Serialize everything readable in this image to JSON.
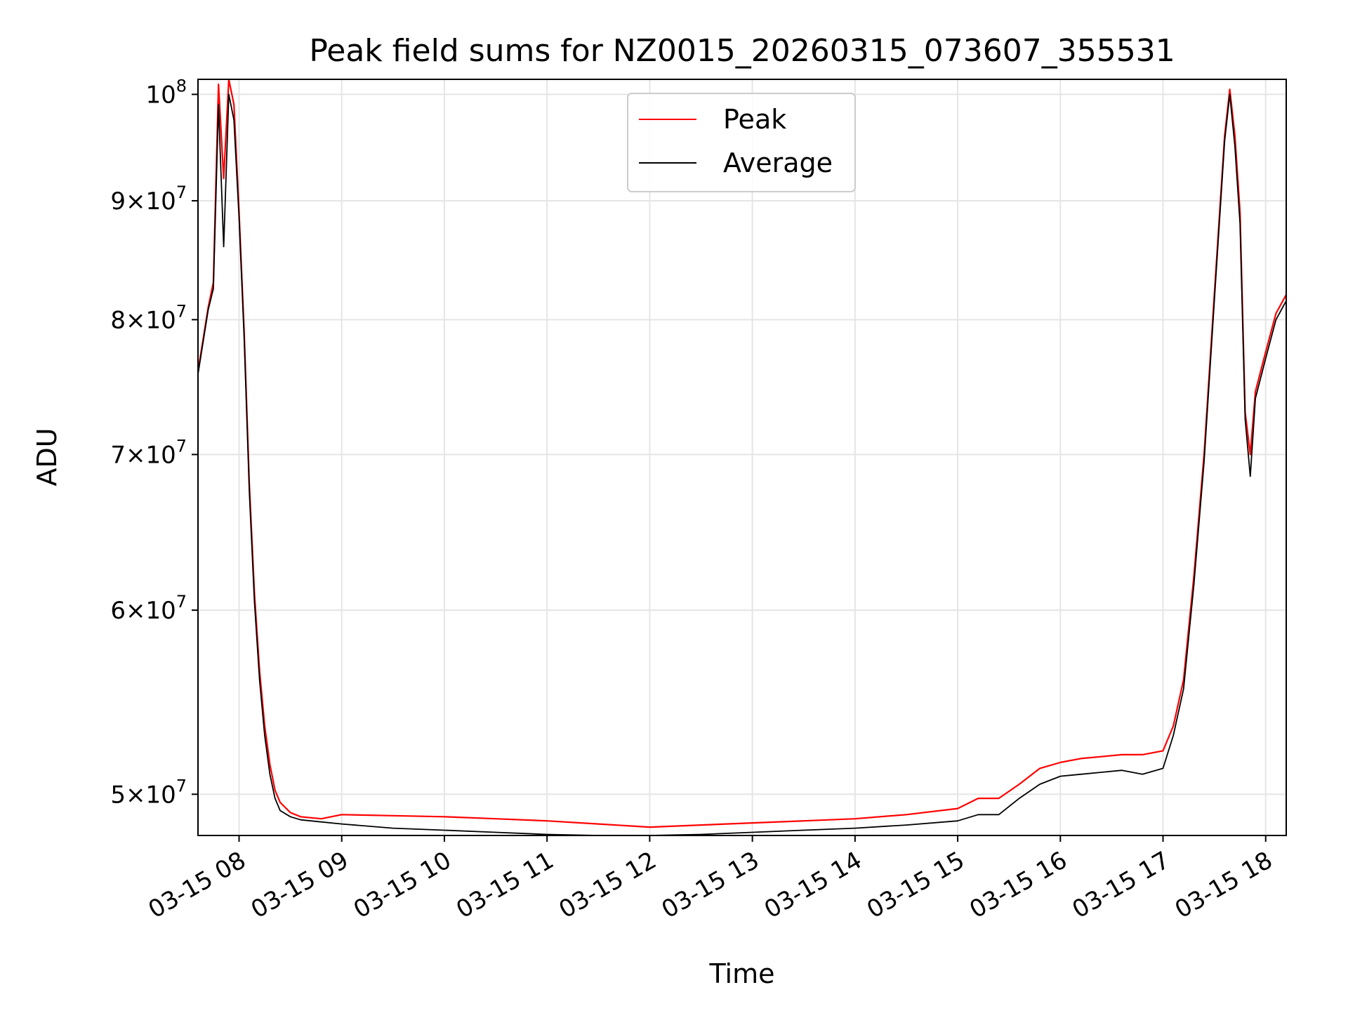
{
  "chart_data": {
    "type": "line",
    "title": "Peak field sums for NZ0015_20260315_073607_355531",
    "xlabel": "Time",
    "ylabel": "ADU",
    "yscale": "log",
    "xlim": [
      7.6,
      18.2
    ],
    "ylim": [
      48000000,
      101500000
    ],
    "grid": true,
    "legend_position": "top-center",
    "x_ticks": [
      {
        "v": 8,
        "label": "03-15 08"
      },
      {
        "v": 9,
        "label": "03-15 09"
      },
      {
        "v": 10,
        "label": "03-15 10"
      },
      {
        "v": 11,
        "label": "03-15 11"
      },
      {
        "v": 12,
        "label": "03-15 12"
      },
      {
        "v": 13,
        "label": "03-15 13"
      },
      {
        "v": 14,
        "label": "03-15 14"
      },
      {
        "v": 15,
        "label": "03-15 15"
      },
      {
        "v": 16,
        "label": "03-15 16"
      },
      {
        "v": 17,
        "label": "03-15 17"
      },
      {
        "v": 18,
        "label": "03-15 18"
      }
    ],
    "y_ticks": [
      {
        "v": 50000000,
        "mant": "5",
        "exp": "7"
      },
      {
        "v": 60000000,
        "mant": "6",
        "exp": "7"
      },
      {
        "v": 70000000,
        "mant": "7",
        "exp": "7"
      },
      {
        "v": 80000000,
        "mant": "8",
        "exp": "7"
      },
      {
        "v": 90000000,
        "mant": "9",
        "exp": "7"
      },
      {
        "v": 100000000,
        "mant": "",
        "exp": "8"
      }
    ],
    "x_unit_note": "hours of day on 03-15",
    "series": [
      {
        "name": "Peak",
        "color": "#ff0000",
        "x": [
          7.6,
          7.7,
          7.75,
          7.8,
          7.85,
          7.9,
          7.95,
          8.0,
          8.05,
          8.1,
          8.15,
          8.2,
          8.25,
          8.3,
          8.35,
          8.4,
          8.5,
          8.6,
          8.8,
          9.0,
          9.5,
          10.0,
          10.5,
          11.0,
          11.5,
          12.0,
          12.5,
          13.0,
          13.5,
          14.0,
          14.5,
          15.0,
          15.2,
          15.4,
          15.6,
          15.8,
          16.0,
          16.2,
          16.4,
          16.6,
          16.8,
          17.0,
          17.1,
          17.2,
          17.3,
          17.4,
          17.5,
          17.6,
          17.65,
          17.7,
          17.75,
          17.8,
          17.85,
          17.9,
          18.0,
          18.1,
          18.2
        ],
        "values": [
          76000000,
          81000000,
          83000000,
          101000000,
          92000000,
          101500000,
          99000000,
          89000000,
          79000000,
          68000000,
          61000000,
          56500000,
          53500000,
          51500000,
          50200000,
          49600000,
          49100000,
          48900000,
          48800000,
          49000000,
          48950000,
          48900000,
          48800000,
          48700000,
          48550000,
          48400000,
          48500000,
          48600000,
          48700000,
          48800000,
          49000000,
          49300000,
          49800000,
          49800000,
          50500000,
          51300000,
          51600000,
          51800000,
          51900000,
          52000000,
          52000000,
          52200000,
          53500000,
          56000000,
          62000000,
          70000000,
          82000000,
          96000000,
          100500000,
          96000000,
          89000000,
          73000000,
          70000000,
          74500000,
          77500000,
          80500000,
          82000000
        ]
      },
      {
        "name": "Average",
        "color": "#000000",
        "x": [
          7.6,
          7.7,
          7.75,
          7.8,
          7.85,
          7.9,
          7.95,
          8.0,
          8.05,
          8.1,
          8.15,
          8.2,
          8.25,
          8.3,
          8.35,
          8.4,
          8.5,
          8.6,
          8.8,
          9.0,
          9.5,
          10.0,
          10.5,
          11.0,
          11.5,
          12.0,
          12.5,
          13.0,
          13.5,
          14.0,
          14.5,
          15.0,
          15.2,
          15.4,
          15.6,
          15.8,
          16.0,
          16.2,
          16.4,
          16.6,
          16.8,
          17.0,
          17.1,
          17.2,
          17.3,
          17.4,
          17.5,
          17.6,
          17.65,
          17.7,
          17.75,
          17.8,
          17.85,
          17.9,
          18.0,
          18.1,
          18.2
        ],
        "values": [
          75800000,
          80800000,
          82500000,
          99000000,
          86000000,
          100000000,
          97500000,
          88500000,
          78500000,
          67500000,
          60500000,
          56000000,
          53000000,
          51000000,
          49800000,
          49200000,
          48900000,
          48750000,
          48650000,
          48550000,
          48350000,
          48250000,
          48150000,
          48050000,
          48000000,
          48000000,
          48050000,
          48150000,
          48250000,
          48350000,
          48500000,
          48700000,
          49000000,
          49000000,
          49800000,
          50500000,
          50900000,
          51000000,
          51100000,
          51200000,
          51000000,
          51300000,
          53000000,
          55500000,
          61500000,
          69500000,
          81500000,
          95500000,
          100000000,
          95000000,
          88000000,
          72500000,
          68500000,
          74000000,
          77000000,
          80000000,
          81500000
        ]
      }
    ]
  }
}
